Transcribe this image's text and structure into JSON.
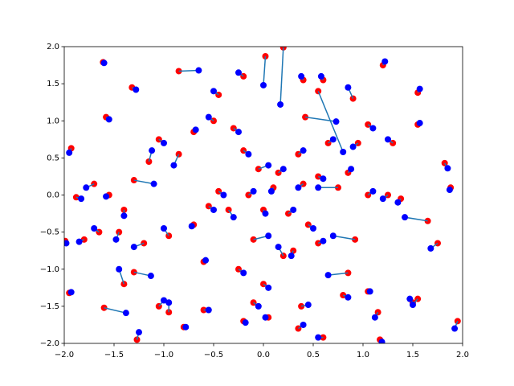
{
  "chart_data": {
    "type": "scatter",
    "xlim": [
      -2,
      2
    ],
    "ylim": [
      -2,
      2
    ],
    "xticks": [
      {
        "value": -2,
        "label": "−2.0"
      },
      {
        "value": -1.5,
        "label": "−1.5"
      },
      {
        "value": -1,
        "label": "−1.0"
      },
      {
        "value": -0.5,
        "label": "−0.5"
      },
      {
        "value": 0,
        "label": "0.0"
      },
      0.5,
      {
        "value": 1,
        "label": "1.0"
      },
      1.5,
      {
        "value": 2,
        "label": "2.0"
      }
    ],
    "yticks": [
      {
        "value": -2,
        "label": "−2.0"
      },
      {
        "value": -1.5,
        "label": "−1.5"
      },
      {
        "value": -1,
        "label": "−1.0"
      },
      {
        "value": -0.5,
        "label": "−0.5"
      },
      {
        "value": 0,
        "label": "0.0"
      },
      0.5,
      {
        "value": 1,
        "label": "1.0"
      },
      1.5,
      {
        "value": 2,
        "label": "2.0"
      }
    ],
    "line_color": "#1f77b4",
    "series": [
      {
        "color": "#ff0000",
        "x": [
          -1.61,
          -1.32,
          -1.58,
          -1.93,
          -1.88,
          -1.99,
          -1.8,
          -1.95,
          -1.6,
          -1.3,
          -1.27,
          -0.85,
          0.2,
          0.02,
          0.55,
          0.42,
          0.9,
          1.2,
          1.55,
          1.55,
          1.82,
          1.88,
          1.65,
          1.75,
          1.95,
          1.5,
          1.55,
          1.15,
          1.17,
          0.6,
          0.05,
          -0.2,
          -0.6,
          -0.95,
          -1.05,
          -0.8,
          0.35,
          0.38,
          0.85,
          1.05,
          0.92,
          0.55,
          0.3,
          0.2,
          -0.1,
          -0.35,
          -0.6,
          -0.7,
          -0.95,
          -1.2,
          -1.45,
          -1.4,
          -1.55,
          -1.7,
          -1.3,
          -1.15,
          -1.05,
          -0.85,
          -0.7,
          -0.5,
          -0.3,
          -0.2,
          -0.05,
          0.15,
          0.35,
          0.55,
          0.85,
          1.05,
          1.25,
          1.38,
          0.75,
          0.4,
          0.1,
          -0.15,
          -0.45,
          -0.55,
          0.0,
          0.25,
          0.45,
          -0.25,
          0.0,
          -0.1,
          0.8,
          -1.4,
          -1.65,
          -0.45,
          -0.2,
          0.4,
          0.6,
          1.05,
          1.3,
          0.95,
          0.65
        ],
        "y": [
          1.79,
          1.45,
          1.05,
          0.63,
          -0.03,
          -0.62,
          -0.6,
          -1.32,
          -1.52,
          -1.04,
          -1.95,
          1.67,
          1.99,
          1.87,
          1.4,
          1.05,
          1.3,
          1.75,
          1.38,
          0.95,
          0.43,
          0.1,
          -0.35,
          -0.65,
          -1.7,
          -1.45,
          -1.4,
          -1.58,
          -1.95,
          -1.92,
          -1.65,
          -1.7,
          -1.55,
          -1.58,
          -1.5,
          -1.78,
          -1.8,
          -1.5,
          -1.05,
          -1.3,
          -0.6,
          -0.65,
          -0.75,
          -0.82,
          -0.6,
          -0.2,
          -0.9,
          -0.4,
          -0.55,
          -0.65,
          -0.5,
          -0.2,
          0.0,
          0.15,
          0.2,
          0.45,
          0.75,
          0.55,
          0.85,
          1.0,
          0.9,
          0.6,
          0.35,
          0.3,
          0.55,
          0.25,
          0.3,
          0.0,
          0.0,
          -0.05,
          0.1,
          0.15,
          0.1,
          0.0,
          0.05,
          -0.15,
          -0.2,
          -0.25,
          -0.4,
          -1.0,
          -1.2,
          -1.45,
          -1.35,
          -1.2,
          -0.5,
          1.35,
          1.6,
          1.55,
          1.55,
          0.95,
          0.7,
          0.7,
          0.7
        ]
      },
      {
        "color": "#0000ff",
        "x": [
          -1.6,
          -1.28,
          -1.55,
          -1.95,
          -1.83,
          -1.98,
          -1.85,
          -1.93,
          -1.38,
          -1.13,
          -1.25,
          -0.65,
          0.17,
          0.0,
          0.8,
          0.73,
          0.85,
          1.22,
          1.57,
          1.57,
          1.85,
          1.87,
          1.42,
          1.68,
          1.92,
          1.47,
          1.5,
          1.12,
          1.19,
          0.55,
          0.02,
          -0.18,
          -0.55,
          -0.95,
          -1.0,
          -0.78,
          0.4,
          0.45,
          0.65,
          1.07,
          0.7,
          0.6,
          0.28,
          0.15,
          0.05,
          -0.3,
          -0.58,
          -0.72,
          -1.0,
          -1.3,
          -1.48,
          -1.4,
          -1.58,
          -1.78,
          -1.1,
          -1.12,
          -1.0,
          -0.9,
          -0.68,
          -0.55,
          -0.25,
          -0.15,
          0.05,
          0.2,
          0.4,
          0.6,
          0.88,
          1.1,
          1.2,
          1.35,
          0.55,
          0.35,
          0.08,
          -0.1,
          -0.4,
          -0.5,
          0.02,
          0.3,
          0.5,
          -0.2,
          0.05,
          -0.05,
          0.85,
          -1.45,
          -1.7,
          -0.5,
          -0.25,
          0.38,
          0.58,
          1.1,
          1.25,
          0.9,
          0.7
        ],
        "y": [
          1.78,
          1.42,
          1.02,
          0.57,
          -0.05,
          -0.65,
          -0.63,
          -1.31,
          -1.59,
          -1.09,
          -1.85,
          1.68,
          1.22,
          1.48,
          0.58,
          0.99,
          1.45,
          1.8,
          1.43,
          0.97,
          0.36,
          0.07,
          -0.3,
          -0.72,
          -1.8,
          -1.4,
          -1.48,
          -1.65,
          -1.98,
          -1.92,
          -1.65,
          -1.72,
          -1.55,
          -1.45,
          -1.42,
          -1.78,
          -1.75,
          -1.48,
          -1.08,
          -1.3,
          -0.55,
          -0.62,
          -0.82,
          -0.7,
          -0.55,
          -0.3,
          -0.88,
          -0.42,
          -0.45,
          -0.7,
          -0.6,
          -0.28,
          -0.02,
          0.1,
          0.15,
          0.6,
          0.7,
          0.4,
          0.88,
          1.05,
          0.85,
          0.55,
          0.4,
          0.35,
          0.6,
          0.22,
          0.35,
          0.05,
          -0.05,
          -0.1,
          0.1,
          0.1,
          0.05,
          0.05,
          0.0,
          -0.2,
          -0.25,
          -0.2,
          -0.45,
          -1.05,
          -1.25,
          -1.5,
          -1.38,
          -1.0,
          -0.45,
          1.4,
          1.65,
          1.6,
          1.6,
          0.9,
          0.75,
          0.65,
          0.75
        ]
      }
    ]
  }
}
